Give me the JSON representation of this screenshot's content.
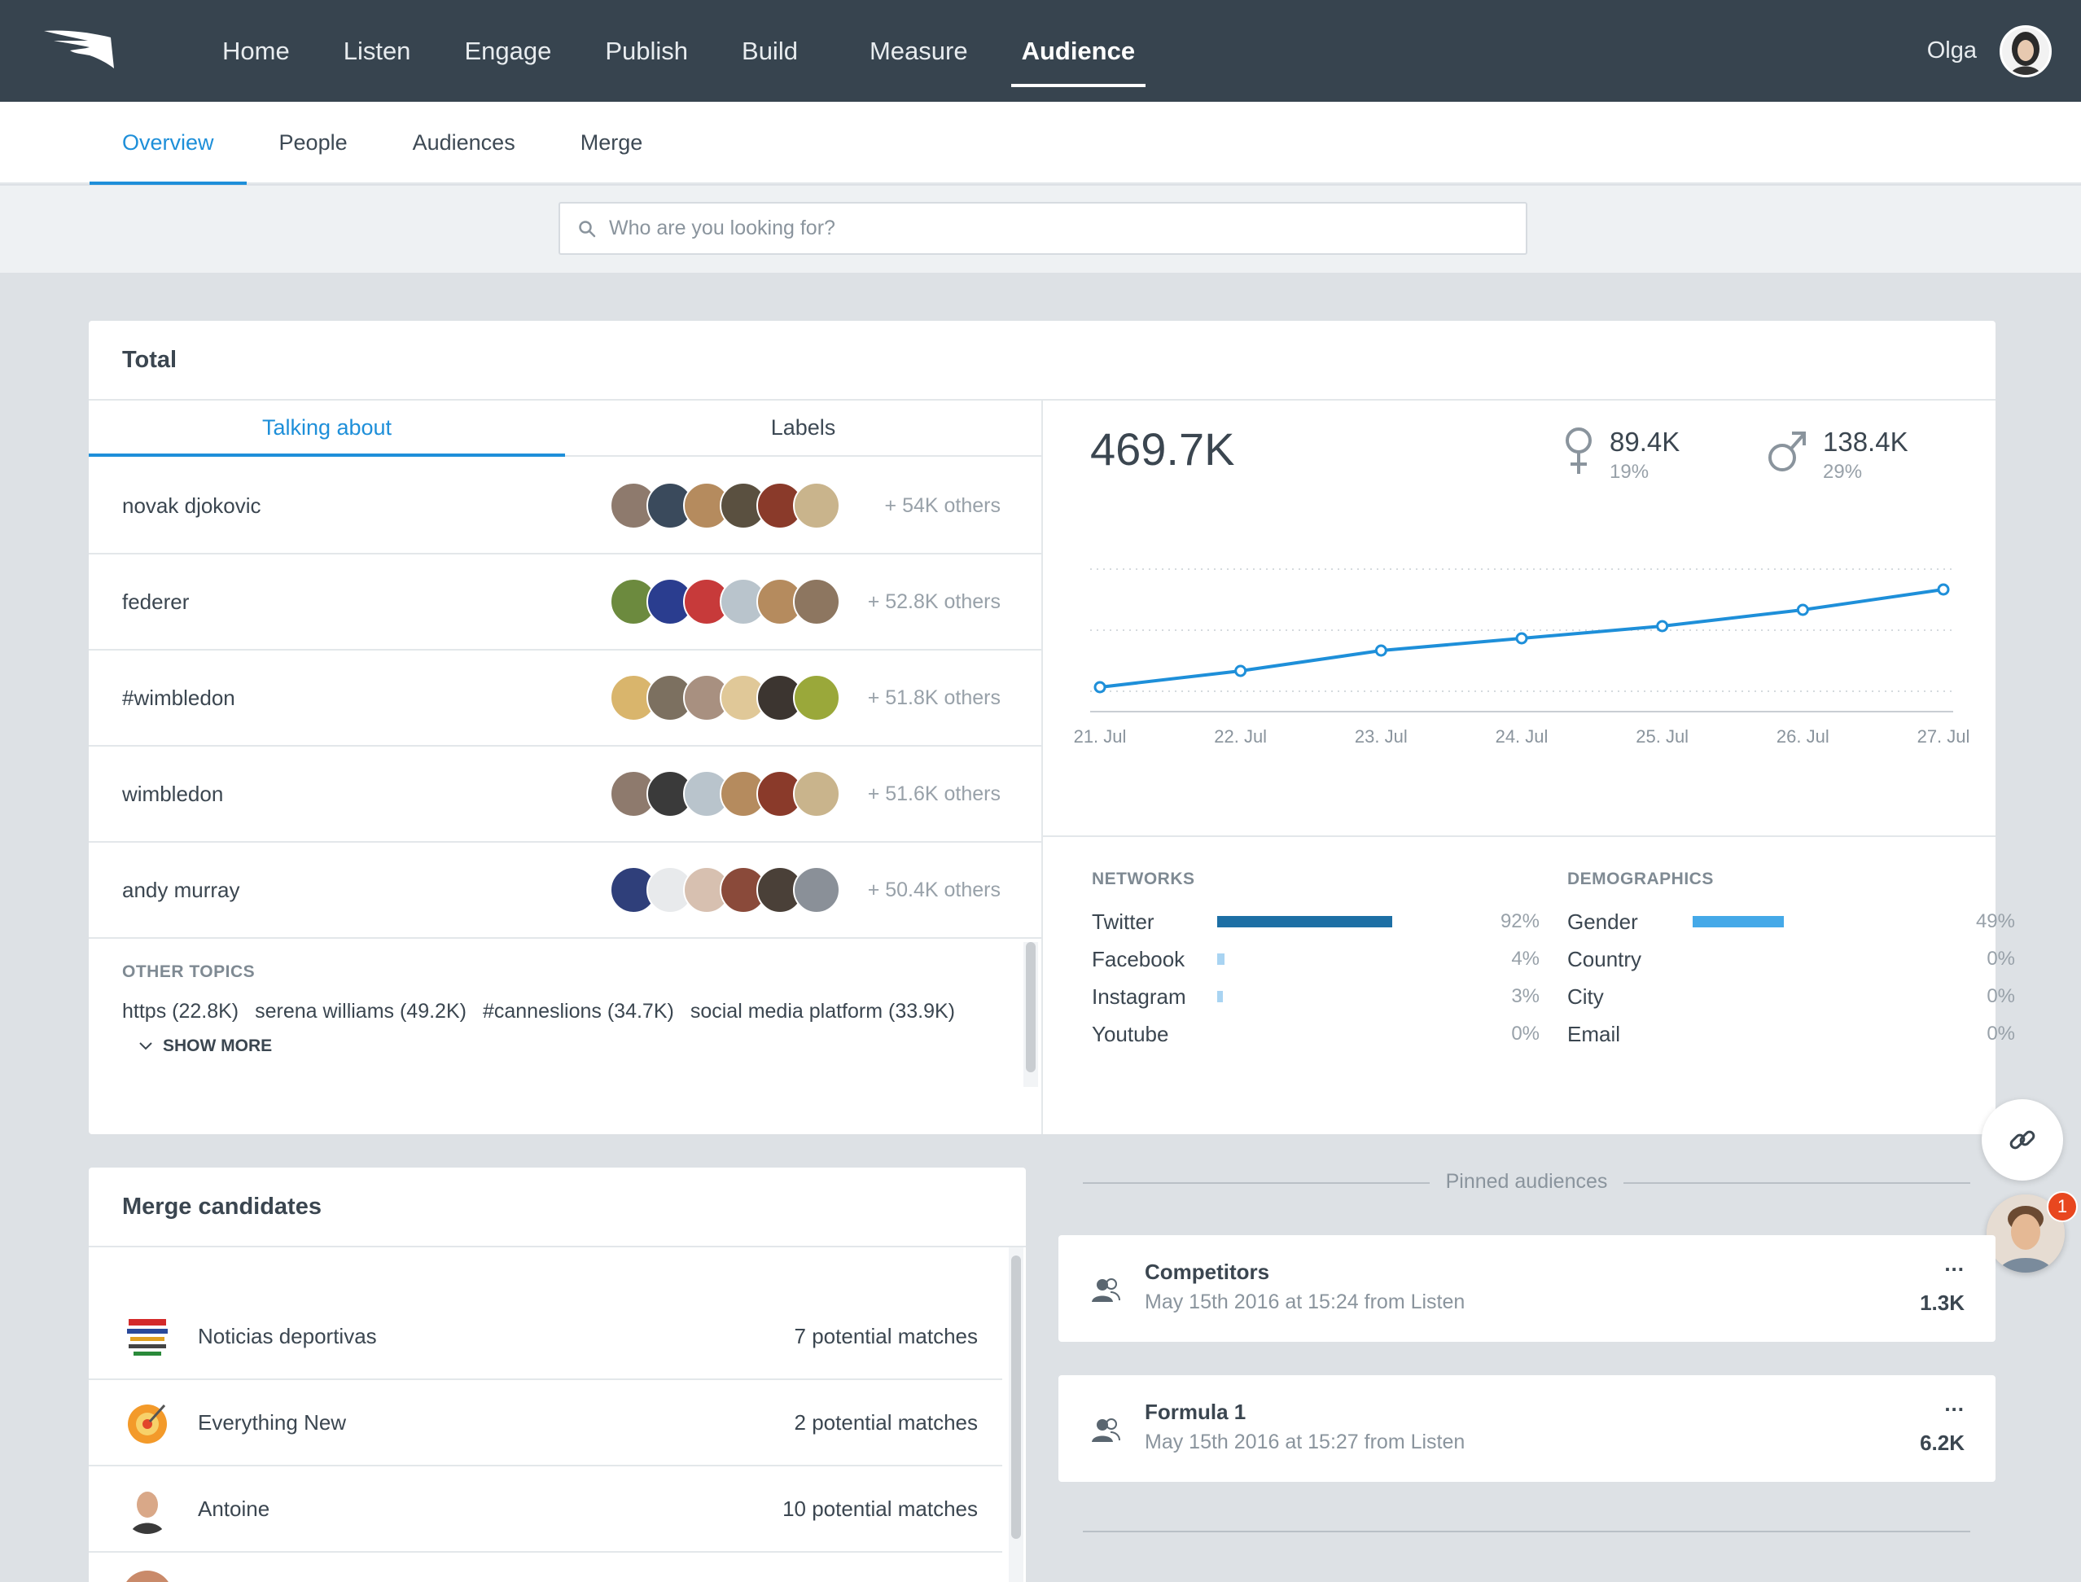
{
  "nav": {
    "items": [
      {
        "label": "Home"
      },
      {
        "label": "Listen"
      },
      {
        "label": "Engage"
      },
      {
        "label": "Publish"
      },
      {
        "label": "Build"
      },
      {
        "label": "Measure"
      },
      {
        "label": "Audience",
        "active": true
      }
    ],
    "user_name": "Olga"
  },
  "subnav": {
    "items": [
      {
        "label": "Overview",
        "active": true
      },
      {
        "label": "People"
      },
      {
        "label": "Audiences"
      },
      {
        "label": "Merge"
      }
    ]
  },
  "search": {
    "placeholder": "Who are you looking for?",
    "value": ""
  },
  "total": {
    "title": "Total",
    "tabs": [
      {
        "label": "Talking about",
        "active": true
      },
      {
        "label": "Labels"
      }
    ],
    "topics": [
      {
        "name": "novak djokovic",
        "others": "+ 54K others"
      },
      {
        "name": "federer",
        "others": "+ 52.8K others"
      },
      {
        "name": "#wimbledon",
        "others": "+ 51.8K others"
      },
      {
        "name": "wimbledon",
        "others": "+ 51.6K others"
      },
      {
        "name": "andy murray",
        "others": "+ 50.4K others"
      }
    ],
    "other_topics_label": "OTHER TOPICS",
    "other_topics": [
      "https (22.8K)",
      "serena williams (49.2K)",
      "#canneslions (34.7K)",
      "social media platform (33.9K)"
    ],
    "show_more": "SHOW MORE",
    "big_value": "469.7K",
    "female": {
      "value": "89.4K",
      "pct": "19%"
    },
    "male": {
      "value": "138.4K",
      "pct": "29%"
    }
  },
  "chart_data": {
    "type": "line",
    "x": [
      "21. Jul",
      "22. Jul",
      "23. Jul",
      "24. Jul",
      "25. Jul",
      "26. Jul",
      "27. Jul"
    ],
    "series": [
      {
        "values": [
          2,
          6,
          11,
          14,
          17,
          21,
          26
        ]
      }
    ],
    "color": "#1e8fd9"
  },
  "networks": {
    "label": "NETWORKS",
    "rows": [
      {
        "name": "Twitter",
        "pct": "92%",
        "value": 0.92
      },
      {
        "name": "Facebook",
        "pct": "4%",
        "value": 0.04
      },
      {
        "name": "Instagram",
        "pct": "3%",
        "value": 0.03
      },
      {
        "name": "Youtube",
        "pct": "0%",
        "value": 0
      }
    ],
    "color": "#1d6fa5"
  },
  "demographics": {
    "label": "DEMOGRAPHICS",
    "rows": [
      {
        "name": "Gender",
        "pct": "49%",
        "value": 0.49
      },
      {
        "name": "Country",
        "pct": "0%",
        "value": 0
      },
      {
        "name": "City",
        "pct": "0%",
        "value": 0
      },
      {
        "name": "Email",
        "pct": "0%",
        "value": 0
      }
    ],
    "color": "#45a9e8"
  },
  "merge": {
    "title": "Merge candidates",
    "rows": [
      {
        "name": "Noticias deportivas",
        "matches": "7 potential matches"
      },
      {
        "name": "Everything New",
        "matches": "2 potential matches"
      },
      {
        "name": "Antoine",
        "matches": "10 potential matches"
      }
    ]
  },
  "pinned": {
    "title": "Pinned audiences",
    "items": [
      {
        "name": "Competitors",
        "sub": "May 15th 2016 at 15:24 from Listen",
        "count": "1.3K",
        "more": "..."
      },
      {
        "name": "Formula 1",
        "sub": "May 15th 2016 at 15:27 from Listen",
        "count": "6.2K",
        "more": "..."
      }
    ]
  },
  "chat_badge": "1",
  "icons": {
    "logo": "wing-logo-icon",
    "search": "search-icon",
    "female": "female-icon",
    "male": "male-icon",
    "link": "link-icon",
    "chevron": "chevron-down-icon",
    "audience": "audience-icon"
  }
}
